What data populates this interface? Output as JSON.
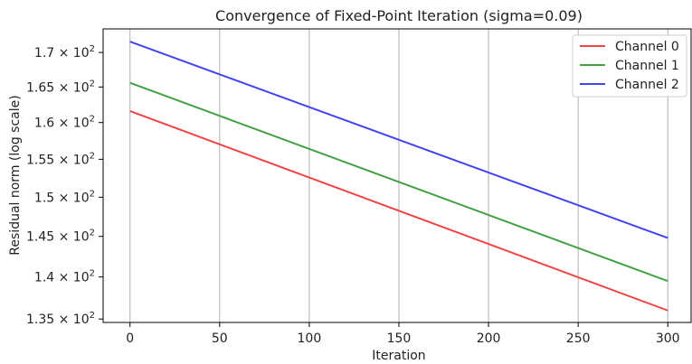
{
  "chart_data": {
    "type": "line",
    "title": "Convergence of Fixed-Point Iteration (sigma=0.09)",
    "xlabel": "Iteration",
    "ylabel": "Residual norm (log scale)",
    "y_scale": "log",
    "xlim": [
      -15,
      313
    ],
    "ylim": [
      134.6,
      173.5
    ],
    "x_ticks": [
      0,
      50,
      100,
      150,
      200,
      250,
      300
    ],
    "x_tick_labels": [
      "0",
      "50",
      "100",
      "150",
      "200",
      "250",
      "300"
    ],
    "y_ticks": [
      135,
      140,
      145,
      150,
      155,
      160,
      165,
      170
    ],
    "y_tick_labels": [
      {
        "mantissa": "1.35",
        "base": "10",
        "exp": "2"
      },
      {
        "mantissa": "1.4",
        "base": "10",
        "exp": "2"
      },
      {
        "mantissa": "1.45",
        "base": "10",
        "exp": "2"
      },
      {
        "mantissa": "1.5",
        "base": "10",
        "exp": "2"
      },
      {
        "mantissa": "1.55",
        "base": "10",
        "exp": "2"
      },
      {
        "mantissa": "1.6",
        "base": "10",
        "exp": "2"
      },
      {
        "mantissa": "1.65",
        "base": "10",
        "exp": "2"
      },
      {
        "mantissa": "1.7",
        "base": "10",
        "exp": "2"
      }
    ],
    "grid": {
      "x": true,
      "y": false
    },
    "legend_position": "top-right",
    "series": [
      {
        "name": "Channel 0",
        "color": "#ee4444",
        "x": [
          0,
          300
        ],
        "y": [
          161.6,
          136.0
        ]
      },
      {
        "name": "Channel 1",
        "color": "#44a044",
        "x": [
          0,
          300
        ],
        "y": [
          165.6,
          139.5
        ]
      },
      {
        "name": "Channel 2",
        "color": "#4444ee",
        "x": [
          0,
          300
        ],
        "y": [
          171.6,
          144.8
        ]
      }
    ]
  }
}
